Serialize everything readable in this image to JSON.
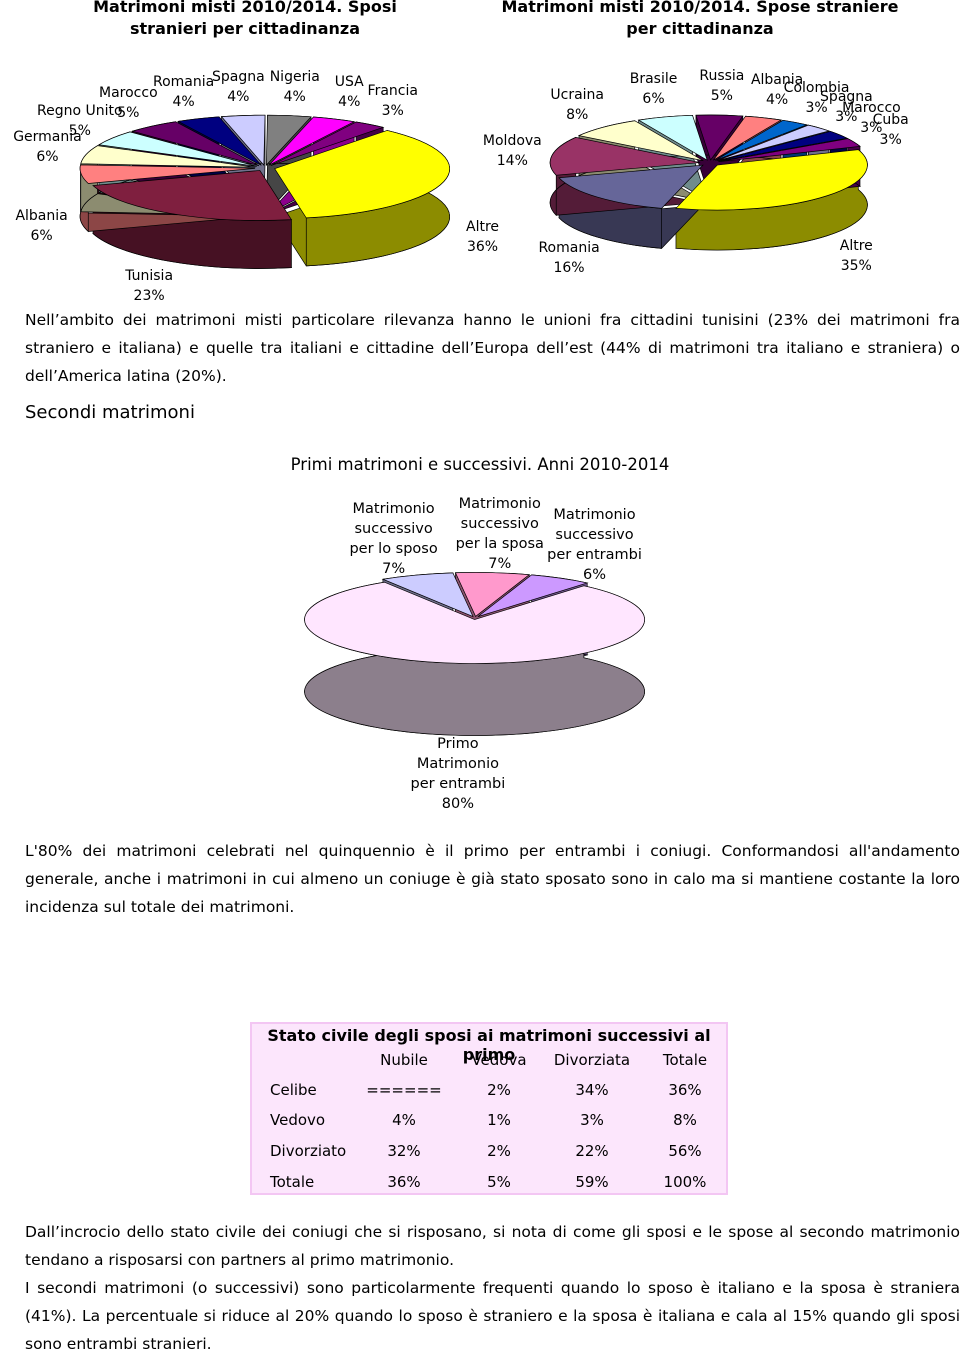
{
  "chart_data": [
    {
      "type": "pie",
      "title": "Matrimoni misti 2010/2014. Sposi stranieri per cittadinanza",
      "categories": [
        "Altre",
        "Tunisia",
        "Albania",
        "Germania",
        "Regno Unito",
        "Marocco",
        "Romania",
        "Spagna",
        "Nigeria",
        "USA",
        "Francia"
      ],
      "values": [
        36,
        23,
        6,
        6,
        5,
        5,
        4,
        4,
        4,
        4,
        3
      ],
      "value_labels": [
        "36%",
        "23%",
        "6%",
        "6%",
        "5%",
        "5%",
        "4%",
        "4%",
        "4%",
        "4%",
        "3%"
      ],
      "colors": [
        "#ffff00",
        "#7f1f3f",
        "#ff8080",
        "#ffffcc",
        "#ccffff",
        "#660066",
        "#000080",
        "#ccccff",
        "#808080",
        "#ff00ff",
        "#800080"
      ]
    },
    {
      "type": "pie",
      "title": "Matrimoni misti 2010/2014. Spose straniere per cittadinanza",
      "categories": [
        "Altre",
        "Romania",
        "Moldova",
        "Ucraina",
        "Brasile",
        "Russia",
        "Albania",
        "Colombia",
        "Spagna",
        "Marocco",
        "Cuba"
      ],
      "values": [
        35,
        16,
        14,
        8,
        6,
        5,
        4,
        3,
        3,
        3,
        3
      ],
      "value_labels": [
        "35%",
        "16%",
        "14%",
        "8%",
        "6%",
        "5%",
        "4%",
        "3%",
        "3%",
        "3%",
        "3%"
      ],
      "colors": [
        "#ffff00",
        "#666699",
        "#993366",
        "#ffffcc",
        "#ccffff",
        "#660066",
        "#ff8080",
        "#0066cc",
        "#ccccff",
        "#000080",
        "#800080"
      ]
    },
    {
      "type": "pie",
      "title": "Primi matrimoni e successivi. Anni 2010-2014",
      "categories": [
        "Matrimonio successivo per lo sposo",
        "Matrimonio successivo per la sposa",
        "Matrimonio successivo per entrambi",
        "Primo Matrimonio per entrambi"
      ],
      "values": [
        7,
        7,
        6,
        80
      ],
      "value_labels": [
        "7%",
        "7%",
        "6%",
        "80%"
      ],
      "colors": [
        "#ccccff",
        "#ff99cc",
        "#cc99ff",
        "#ffe6ff"
      ]
    }
  ],
  "paragraphs": [
    "Nell’ambito dei matrimoni misti particolare rilevanza hanno le unioni fra cittadini tunisini (23% dei matrimoni fra straniero e italiana) e quelle tra italiani e cittadine dell’Europa dell’est (44% di matrimoni tra italiano e straniera) o dell’America latina (20%).",
    "L'80% dei matrimoni celebrati nel quinquennio è il primo per entrambi i coniugi. Conformandosi all'andamento generale, anche i matrimoni in cui almeno un coniuge è già stato sposato sono in calo ma si mantiene costante la loro incidenza sul totale dei matrimoni.",
    "Dall’incrocio dello stato civile dei coniugi che si risposano,  si nota di come gli sposi e le spose al secondo matrimonio tendano a risposarsi con partners al primo matrimonio.",
    "I secondi matrimoni (o successivi) sono particolarmente frequenti quando lo sposo è italiano e la sposa è straniera (41%). La percentuale si riduce al 20% quando lo sposo è straniero e la sposa è italiana e cala al 15% quando gli sposi sono entrambi stranieri."
  ],
  "section_heading": "Secondi matrimoni",
  "table": {
    "title": "Stato civile degli sposi ai matrimoni successivi al primo",
    "columns": [
      "Nubile",
      "Vedova",
      "Divorziata",
      "Totale"
    ],
    "rows": [
      [
        "Celibe",
        "======",
        "2%",
        "34%",
        "36%"
      ],
      [
        "Vedovo",
        "4%",
        "1%",
        "3%",
        "8%"
      ],
      [
        "Divorziato",
        "32%",
        "2%",
        "22%",
        "56%"
      ],
      [
        "Totale",
        "36%",
        "5%",
        "59%",
        "100%"
      ]
    ]
  }
}
